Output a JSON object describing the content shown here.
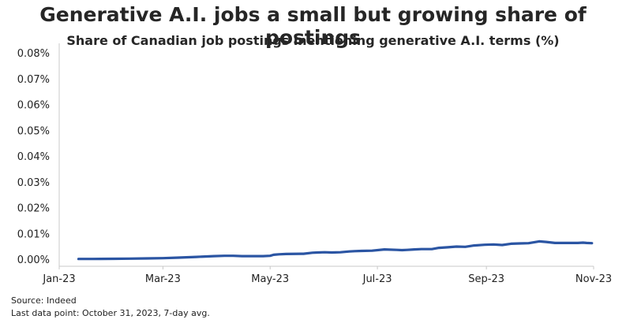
{
  "chart_data": {
    "type": "line",
    "title": "Generative A.I. jobs a small but growing share of postings",
    "subtitle": "Share of Canadian job postings mentioning generative A.I. terms (%)",
    "xlabel": "",
    "ylabel": "",
    "x_ticks": [
      "Jan-23",
      "Mar-23",
      "May-23",
      "Jul-23",
      "Sep-23",
      "Nov-23"
    ],
    "y_ticks": [
      "0.00%",
      "0.01%",
      "0.02%",
      "0.03%",
      "0.04%",
      "0.05%",
      "0.06%",
      "0.07%",
      "0.08%"
    ],
    "ylim": [
      0,
      0.08
    ],
    "xlim": [
      "2023-01-01",
      "2023-11-01"
    ],
    "grid": false,
    "color": "#2b55a3",
    "series": [
      {
        "x": [
          "2023-01-12",
          "2023-01-20",
          "2023-02-01",
          "2023-02-10",
          "2023-02-20",
          "2023-03-01",
          "2023-03-10",
          "2023-03-20",
          "2023-03-30",
          "2023-04-05",
          "2023-04-10",
          "2023-04-15",
          "2023-04-20",
          "2023-04-27",
          "2023-05-01",
          "2023-05-03",
          "2023-05-06",
          "2023-05-10",
          "2023-05-20",
          "2023-05-25",
          "2023-05-28",
          "2023-06-01",
          "2023-06-05",
          "2023-06-10",
          "2023-06-15",
          "2023-06-18",
          "2023-06-22",
          "2023-06-28",
          "2023-07-05",
          "2023-07-12",
          "2023-07-15",
          "2023-07-18",
          "2023-07-22",
          "2023-07-26",
          "2023-08-01",
          "2023-08-05",
          "2023-08-10",
          "2023-08-15",
          "2023-08-20",
          "2023-08-25",
          "2023-08-31",
          "2023-09-05",
          "2023-09-10",
          "2023-09-15",
          "2023-09-20",
          "2023-09-25",
          "2023-10-01",
          "2023-10-05",
          "2023-10-10",
          "2023-10-15",
          "2023-10-20",
          "2023-10-23",
          "2023-10-26",
          "2023-10-28",
          "2023-10-31"
        ],
        "values": [
          0.0001,
          0.0001,
          0.00015,
          0.0002,
          0.0003,
          0.0004,
          0.0006,
          0.0009,
          0.0012,
          0.0013,
          0.0013,
          0.0012,
          0.0012,
          0.0012,
          0.0013,
          0.0017,
          0.0019,
          0.002,
          0.0021,
          0.0025,
          0.0026,
          0.0027,
          0.0026,
          0.0027,
          0.003,
          0.0031,
          0.0032,
          0.0033,
          0.0038,
          0.0036,
          0.0035,
          0.0036,
          0.0038,
          0.0039,
          0.0039,
          0.0044,
          0.0046,
          0.0049,
          0.0048,
          0.0053,
          0.0056,
          0.0057,
          0.0055,
          0.006,
          0.0061,
          0.0062,
          0.0069,
          0.0067,
          0.0063,
          0.0063,
          0.0063,
          0.0063,
          0.0064,
          0.0063,
          0.0062
        ]
      }
    ]
  },
  "footer": {
    "source": "Source: Indeed",
    "note": "Last data point: October 31, 2023, 7-day avg."
  }
}
